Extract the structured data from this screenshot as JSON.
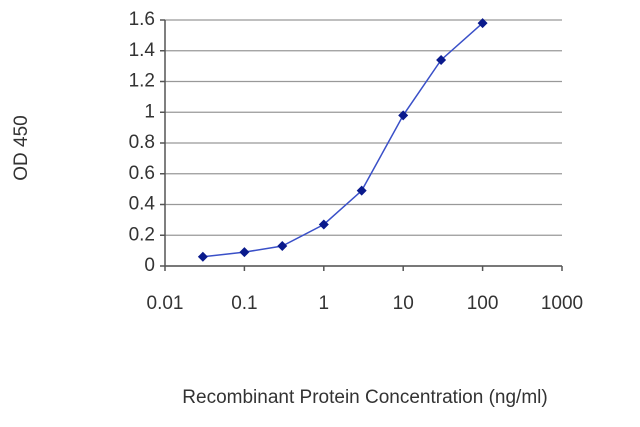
{
  "chart_data": {
    "type": "line",
    "x_label": "Recombinant Protein Concentration (ng/ml)",
    "y_label": "OD 450",
    "x": [
      0.03,
      0.1,
      0.3,
      1,
      3,
      10,
      30,
      100
    ],
    "series": [
      {
        "color": "#0a1a8c",
        "values": [
          0.06,
          0.09,
          0.13,
          0.27,
          0.49,
          0.98,
          1.34,
          1.58
        ]
      }
    ],
    "xscale": "log",
    "xlim": [
      0.01,
      1000
    ],
    "xticks": [
      0.01,
      0.1,
      1,
      10,
      100,
      1000
    ],
    "ylim": [
      0,
      1.6
    ],
    "yticks": [
      0,
      0.2,
      0.4,
      0.6,
      0.8,
      1,
      1.2,
      1.4,
      1.6
    ],
    "grid": true
  }
}
